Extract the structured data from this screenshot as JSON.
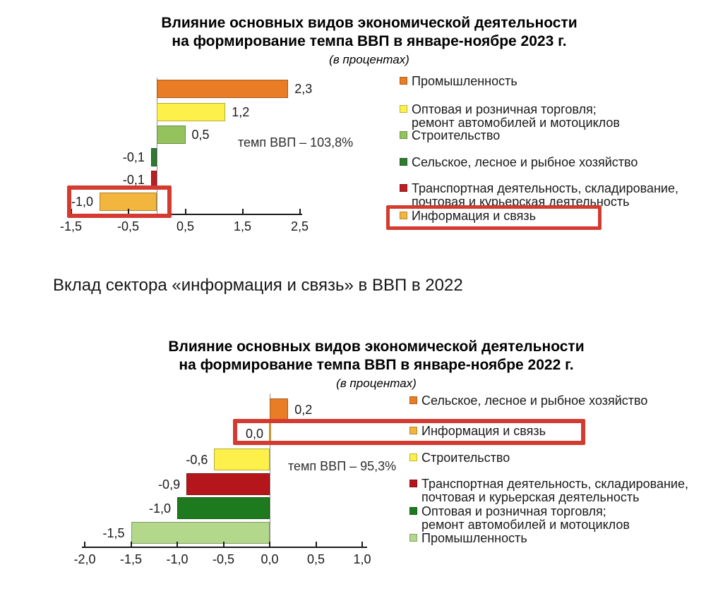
{
  "page": {
    "background": "#ffffff"
  },
  "section_heading": "Вклад сектора «информация и связь» в ВВП в 2022",
  "highlight_color": "#d43b30",
  "chart_data": [
    {
      "type": "bar",
      "orientation": "horizontal",
      "title_lines": [
        "Влияние основных видов экономической деятельности",
        "на формирование темпа ВВП в январе-ноябре 2023 г."
      ],
      "subtitle": "(в процентах)",
      "annotation": "темп ВВП – 103,8%",
      "categories": [
        "Промышленность",
        "Оптовая и розничная торговля; ремонт автомобилей и мотоциклов",
        "Строительство",
        "Сельское, лесное и рыбное хозяйство",
        "Транспортная деятельность, складирование, почтовая и курьерская деятельность",
        "Информация и связь"
      ],
      "values": [
        2.3,
        1.2,
        0.5,
        -0.1,
        -0.1,
        -1.0
      ],
      "value_labels": [
        "2,3",
        "1,2",
        "0,5",
        "-0,1",
        "-0,1",
        "-1,0"
      ],
      "colors": [
        "#e87d26",
        "#fdf04b",
        "#94c25c",
        "#2e7d2e",
        "#bc1f23",
        "#f2b53e"
      ],
      "xlim": [
        -1.5,
        2.5
      ],
      "x_ticks": [
        -1.5,
        -0.5,
        0.5,
        1.5,
        2.5
      ],
      "x_tick_labels": [
        "-1,5",
        "-0,5",
        "0,5",
        "1,5",
        "2,5"
      ],
      "grid": false,
      "legend_position": "right",
      "legend": [
        {
          "lines": [
            "Промышленность"
          ],
          "color": "#e87d26"
        },
        {
          "lines": [
            "Оптовая и розничная торговля;",
            "ремонт автомобилей и мотоциклов"
          ],
          "color": "#fdf04b"
        },
        {
          "lines": [
            "Строительство"
          ],
          "color": "#94c25c"
        },
        {
          "lines": [
            "Сельское, лесное и рыбное хозяйство"
          ],
          "color": "#2e7d2e"
        },
        {
          "lines": [
            "Транспортная  деятельность, складирование,",
            "почтовая и курьерская деятельность"
          ],
          "color": "#bc1f23"
        },
        {
          "lines": [
            "Информация и связь"
          ],
          "color": "#f2b53e"
        }
      ],
      "highlighted_category": "Информация и связь"
    },
    {
      "type": "bar",
      "orientation": "horizontal",
      "title_lines": [
        "Влияние основных видов экономической деятельности",
        "на формирование темпа ВВП в январе-ноябре 2022 г."
      ],
      "subtitle": "(в процентах)",
      "annotation": "темп ВВП – 95,3%",
      "categories": [
        "Сельское, лесное и рыбное хозяйство",
        "Информация и связь",
        "Строительство",
        "Транспортная деятельность, складирование, почтовая и курьерская деятельность",
        "Оптовая и розничная торговля; ремонт автомобилей и мотоциклов",
        "Промышленность"
      ],
      "values": [
        0.2,
        0.0,
        -0.6,
        -0.9,
        -1.0,
        -1.5
      ],
      "value_labels": [
        "0,2",
        "0,0",
        "-0,6",
        "-0,9",
        "-1,0",
        "-1,5"
      ],
      "colors": [
        "#e87d26",
        "#f2b53e",
        "#fdf04b",
        "#b5161b",
        "#1e7a1e",
        "#b3d88c"
      ],
      "xlim": [
        -2.0,
        1.0
      ],
      "x_ticks": [
        -2.0,
        -1.5,
        -1.0,
        -0.5,
        0.0,
        0.5,
        1.0
      ],
      "x_tick_labels": [
        "-2,0",
        "-1,5",
        "-1,0",
        "-0,5",
        "0,0",
        "0,5",
        "1,0"
      ],
      "grid": false,
      "legend_position": "right",
      "legend": [
        {
          "lines": [
            "Сельское, лесное и рыбное хозяйство"
          ],
          "color": "#e87d26"
        },
        {
          "lines": [
            "Информация и связь"
          ],
          "color": "#f2b53e"
        },
        {
          "lines": [
            "Строительство"
          ],
          "color": "#fdf04b"
        },
        {
          "lines": [
            "Транспортная  деятельность, складирование,",
            "почтовая и курьерская деятельность"
          ],
          "color": "#b5161b"
        },
        {
          "lines": [
            "Оптовая и розничная торговля;",
            "ремонт автомобилей и мотоциклов"
          ],
          "color": "#1e7a1e"
        },
        {
          "lines": [
            "Промышленность"
          ],
          "color": "#b3d88c"
        }
      ],
      "highlighted_category": "Информация и связь"
    }
  ]
}
